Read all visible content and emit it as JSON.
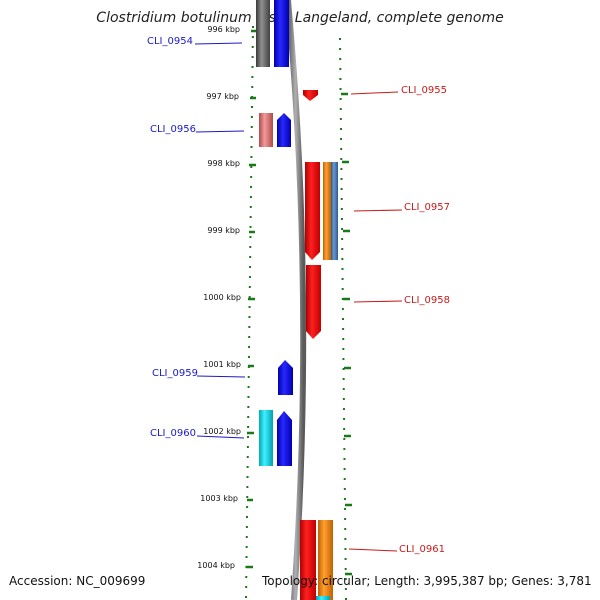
{
  "title": "Clostridium botulinum F str. Langeland, complete genome",
  "footer": {
    "accession": "Accession: NC_009699",
    "summary": "Topology: circular; Length: 3,995,387 bp; Genes: 3,781"
  },
  "colors": {
    "backbone": "#7a7a7a",
    "ticks": "#1a7a1a",
    "left_label": "#1a1ac8",
    "right_label": "#c81a1a"
  },
  "kbp_labels": [
    "996 kbp",
    "997 kbp",
    "998 kbp",
    "999 kbp",
    "1000 kbp",
    "1001 kbp",
    "1002 kbp",
    "1003 kbp",
    "1004 kbp"
  ],
  "left_genes": [
    {
      "label": "CLI_0954"
    },
    {
      "label": "CLI_0956"
    },
    {
      "label": "CLI_0959"
    },
    {
      "label": "CLI_0960"
    }
  ],
  "right_genes": [
    {
      "label": "CLI_0955"
    },
    {
      "label": "CLI_0957"
    },
    {
      "label": "CLI_0958"
    },
    {
      "label": "CLI_0961"
    }
  ]
}
